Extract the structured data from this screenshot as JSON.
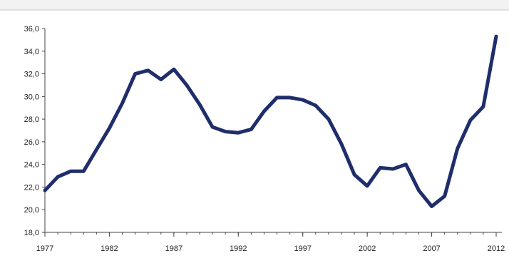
{
  "chart_data": {
    "type": "line",
    "title": "",
    "xlabel": "",
    "ylabel": "",
    "x_tick_labels": [
      "1977",
      "1982",
      "1987",
      "1992",
      "1997",
      "2002",
      "2007",
      "2012"
    ],
    "y_tick_labels": [
      "18,0",
      "20,0",
      "22,0",
      "24,0",
      "26,0",
      "28,0",
      "30,0",
      "32,0",
      "34,0",
      "36,0"
    ],
    "xlim": [
      1977,
      2012
    ],
    "ylim": [
      18,
      36
    ],
    "grid": false,
    "legend": "none",
    "series": [
      {
        "color": "#1f2e6b",
        "x": [
          1977,
          1978,
          1979,
          1980,
          1981,
          1982,
          1983,
          1984,
          1985,
          1986,
          1987,
          1988,
          1989,
          1990,
          1991,
          1992,
          1993,
          1994,
          1995,
          1996,
          1997,
          1998,
          1999,
          2000,
          2001,
          2002,
          2003,
          2004,
          2005,
          2006,
          2007,
          2008,
          2009,
          2010,
          2011,
          2012
        ],
        "values": [
          21.7,
          22.9,
          23.4,
          23.4,
          25.3,
          27.2,
          29.4,
          32.0,
          32.3,
          31.5,
          32.4,
          31.0,
          29.3,
          27.3,
          26.9,
          26.8,
          27.1,
          28.7,
          29.9,
          29.9,
          29.7,
          29.2,
          28.0,
          25.8,
          23.1,
          22.1,
          23.7,
          23.6,
          24.0,
          21.7,
          20.3,
          21.2,
          25.4,
          27.9,
          29.1,
          35.3
        ]
      }
    ]
  }
}
